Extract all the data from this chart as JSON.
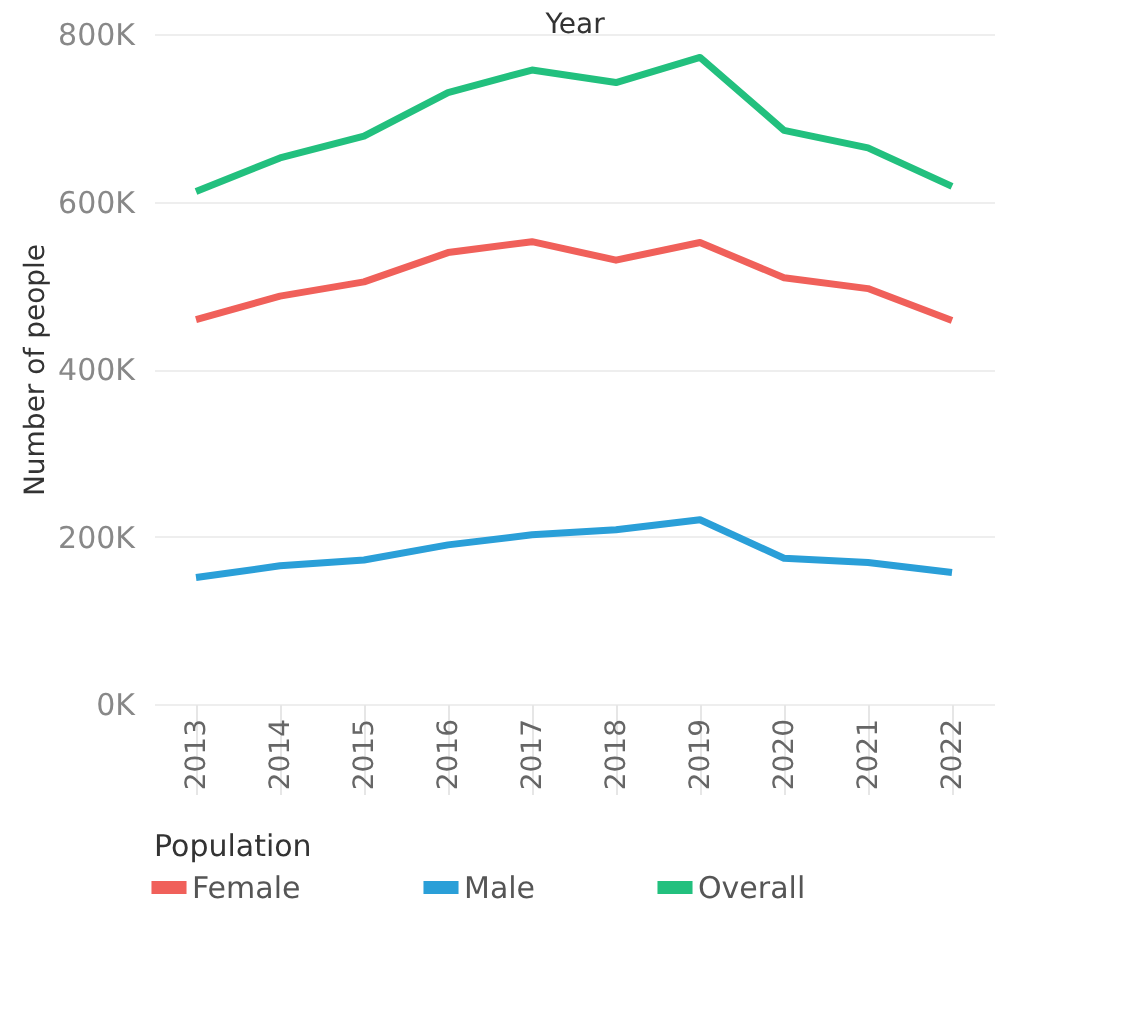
{
  "chart_data": {
    "type": "line",
    "xlabel": "Year",
    "ylabel": "Number of people",
    "legend_title": "Population",
    "categories": [
      "2013",
      "2014",
      "2015",
      "2016",
      "2017",
      "2018",
      "2019",
      "2020",
      "2021",
      "2022"
    ],
    "series": [
      {
        "name": "Female",
        "color": "#f0605a",
        "values": [
          459000,
          487000,
          504000,
          539000,
          552000,
          530000,
          551000,
          509000,
          496000,
          458000
        ]
      },
      {
        "name": "Male",
        "color": "#2a9fd8",
        "values": [
          151000,
          165000,
          172000,
          190000,
          202000,
          208000,
          220000,
          174000,
          169000,
          157000
        ]
      },
      {
        "name": "Overall",
        "color": "#22c07e",
        "values": [
          612000,
          652000,
          678000,
          730000,
          757000,
          742000,
          772000,
          685000,
          664000,
          618000
        ]
      }
    ],
    "ylim": [
      0,
      800000
    ],
    "yticks": [
      {
        "value": 0,
        "label": "0K"
      },
      {
        "value": 200000,
        "label": "200K"
      },
      {
        "value": 400000,
        "label": "400K"
      },
      {
        "value": 600000,
        "label": "600K"
      },
      {
        "value": 800000,
        "label": "800K"
      }
    ],
    "grid": "y",
    "legend": "bottom",
    "marker": "none",
    "line_style": "solid"
  }
}
